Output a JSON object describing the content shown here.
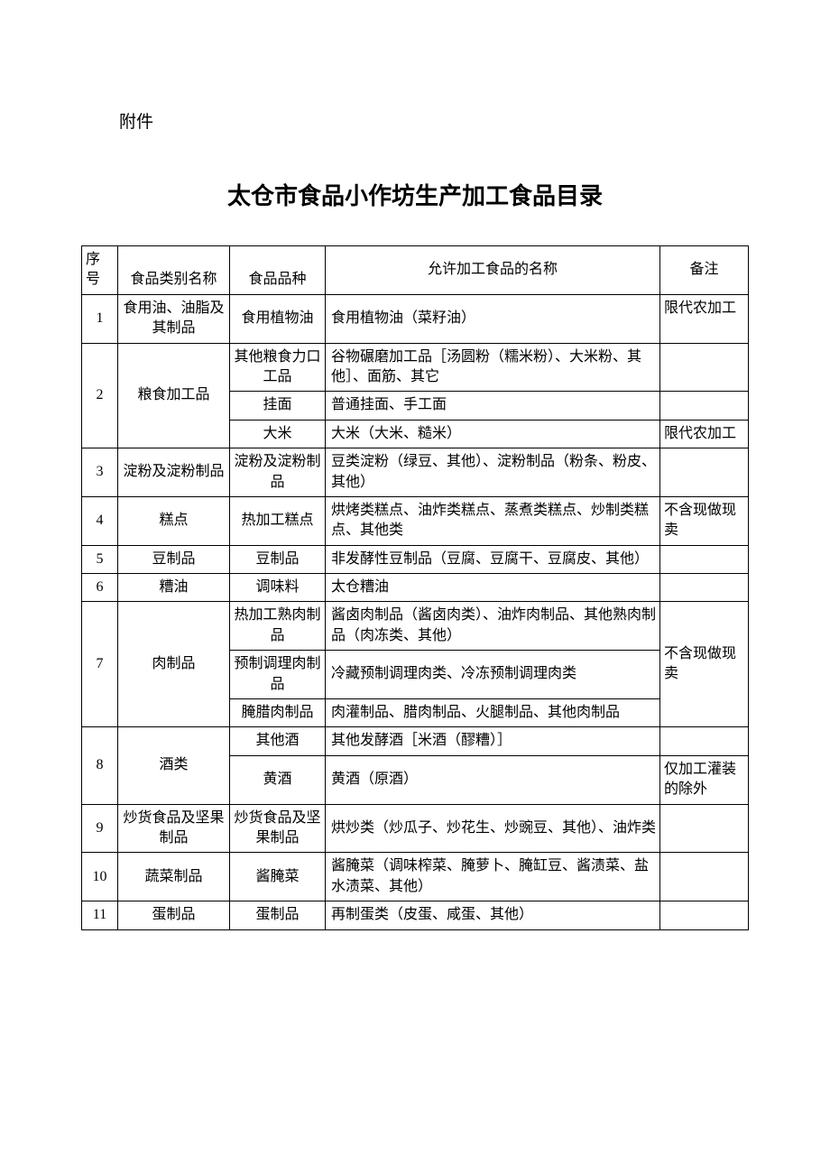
{
  "attachment_label": "附件",
  "title": "太仓市食品小作坊生产加工食品目录",
  "headers": {
    "seq": "序号",
    "category": "食品类别名称",
    "variety": "食品品种",
    "name": "允许加工食品的名称",
    "note": "备注"
  },
  "rows": [
    {
      "seq": "1",
      "category": "食用油、油脂及其制品",
      "sub": [
        {
          "variety": "食用植物油",
          "name": "食用植物油（菜籽油）",
          "note": "限代农加工"
        }
      ]
    },
    {
      "seq": "2",
      "category": "粮食加工品",
      "sub": [
        {
          "variety": "其他粮食力口工品",
          "name": "谷物碾磨加工品［汤圆粉（糯米粉）、大米粉、其他］、面筋、其它",
          "note": ""
        },
        {
          "variety": "挂面",
          "name": "普通挂面、手工面",
          "note": ""
        },
        {
          "variety": "大米",
          "name": "大米（大米、糙米）",
          "note": "限代农加工"
        }
      ]
    },
    {
      "seq": "3",
      "category": "淀粉及淀粉制品",
      "sub": [
        {
          "variety": "淀粉及淀粉制品",
          "name": "豆类淀粉（绿豆、其他）、淀粉制品（粉条、粉皮、其他）",
          "note": ""
        }
      ]
    },
    {
      "seq": "4",
      "category": "糕点",
      "sub": [
        {
          "variety": "热加工糕点",
          "name": "烘烤类糕点、油炸类糕点、蒸煮类糕点、炒制类糕点、其他类",
          "note": "不含现做现卖"
        }
      ]
    },
    {
      "seq": "5",
      "category": "豆制品",
      "sub": [
        {
          "variety": "豆制品",
          "name": "非发酵性豆制品（豆腐、豆腐干、豆腐皮、其他）",
          "note": ""
        }
      ]
    },
    {
      "seq": "6",
      "category": "糟油",
      "sub": [
        {
          "variety": "调味料",
          "name": "太仓糟油",
          "note": ""
        }
      ]
    },
    {
      "seq": "7",
      "category": "肉制品",
      "note": "不含现做现卖",
      "sub": [
        {
          "variety": "热加工熟肉制品",
          "name": "酱卤肉制品（酱卤肉类）、油炸肉制品、其他熟肉制品（肉冻类、其他）"
        },
        {
          "variety": "预制调理肉制品",
          "name": "冷藏预制调理肉类、冷冻预制调理肉类"
        },
        {
          "variety": "腌腊肉制品",
          "name": "肉灌制品、腊肉制品、火腿制品、其他肉制品"
        }
      ]
    },
    {
      "seq": "8",
      "category": "酒类",
      "sub": [
        {
          "variety": "其他酒",
          "name": "其他发酵酒［米酒（醪糟）］",
          "note": ""
        },
        {
          "variety": "黄酒",
          "name": "黄酒（原酒）",
          "note": "仅加工灌装的除外"
        }
      ]
    },
    {
      "seq": "9",
      "category": "炒货食品及坚果制品",
      "sub": [
        {
          "variety": "炒货食品及坚果制品",
          "name": "烘炒类（炒瓜子、炒花生、炒豌豆、其他）、油炸类",
          "note": ""
        }
      ]
    },
    {
      "seq": "10",
      "category": "蔬菜制品",
      "sub": [
        {
          "variety": "酱腌菜",
          "name": "酱腌菜（调味榨菜、腌萝卜、腌缸豆、酱渍菜、盐水渍菜、其他）",
          "note": ""
        }
      ]
    },
    {
      "seq": "11",
      "category": "蛋制品",
      "sub": [
        {
          "variety": "蛋制品",
          "name": "再制蛋类（皮蛋、咸蛋、其他）",
          "note": ""
        }
      ]
    }
  ]
}
